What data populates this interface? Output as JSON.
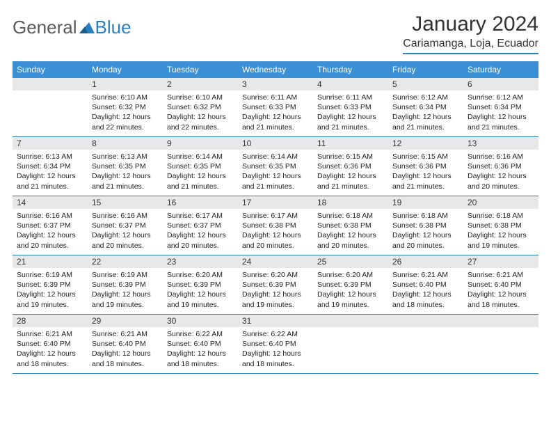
{
  "brand": {
    "name1": "General",
    "name2": "Blue"
  },
  "title": "January 2024",
  "location": "Cariamanga, Loja, Ecuador",
  "colors": {
    "header_bg": "#3b8fd4",
    "accent": "#2a7fbf",
    "date_bg": "#e8e8e8",
    "text": "#222222",
    "page_bg": "#ffffff"
  },
  "day_names": [
    "Sunday",
    "Monday",
    "Tuesday",
    "Wednesday",
    "Thursday",
    "Friday",
    "Saturday"
  ],
  "weeks": [
    [
      null,
      {
        "n": "1",
        "sr": "Sunrise: 6:10 AM",
        "ss": "Sunset: 6:32 PM",
        "d1": "Daylight: 12 hours",
        "d2": "and 22 minutes."
      },
      {
        "n": "2",
        "sr": "Sunrise: 6:10 AM",
        "ss": "Sunset: 6:32 PM",
        "d1": "Daylight: 12 hours",
        "d2": "and 22 minutes."
      },
      {
        "n": "3",
        "sr": "Sunrise: 6:11 AM",
        "ss": "Sunset: 6:33 PM",
        "d1": "Daylight: 12 hours",
        "d2": "and 21 minutes."
      },
      {
        "n": "4",
        "sr": "Sunrise: 6:11 AM",
        "ss": "Sunset: 6:33 PM",
        "d1": "Daylight: 12 hours",
        "d2": "and 21 minutes."
      },
      {
        "n": "5",
        "sr": "Sunrise: 6:12 AM",
        "ss": "Sunset: 6:34 PM",
        "d1": "Daylight: 12 hours",
        "d2": "and 21 minutes."
      },
      {
        "n": "6",
        "sr": "Sunrise: 6:12 AM",
        "ss": "Sunset: 6:34 PM",
        "d1": "Daylight: 12 hours",
        "d2": "and 21 minutes."
      }
    ],
    [
      {
        "n": "7",
        "sr": "Sunrise: 6:13 AM",
        "ss": "Sunset: 6:34 PM",
        "d1": "Daylight: 12 hours",
        "d2": "and 21 minutes."
      },
      {
        "n": "8",
        "sr": "Sunrise: 6:13 AM",
        "ss": "Sunset: 6:35 PM",
        "d1": "Daylight: 12 hours",
        "d2": "and 21 minutes."
      },
      {
        "n": "9",
        "sr": "Sunrise: 6:14 AM",
        "ss": "Sunset: 6:35 PM",
        "d1": "Daylight: 12 hours",
        "d2": "and 21 minutes."
      },
      {
        "n": "10",
        "sr": "Sunrise: 6:14 AM",
        "ss": "Sunset: 6:35 PM",
        "d1": "Daylight: 12 hours",
        "d2": "and 21 minutes."
      },
      {
        "n": "11",
        "sr": "Sunrise: 6:15 AM",
        "ss": "Sunset: 6:36 PM",
        "d1": "Daylight: 12 hours",
        "d2": "and 21 minutes."
      },
      {
        "n": "12",
        "sr": "Sunrise: 6:15 AM",
        "ss": "Sunset: 6:36 PM",
        "d1": "Daylight: 12 hours",
        "d2": "and 21 minutes."
      },
      {
        "n": "13",
        "sr": "Sunrise: 6:16 AM",
        "ss": "Sunset: 6:36 PM",
        "d1": "Daylight: 12 hours",
        "d2": "and 20 minutes."
      }
    ],
    [
      {
        "n": "14",
        "sr": "Sunrise: 6:16 AM",
        "ss": "Sunset: 6:37 PM",
        "d1": "Daylight: 12 hours",
        "d2": "and 20 minutes."
      },
      {
        "n": "15",
        "sr": "Sunrise: 6:16 AM",
        "ss": "Sunset: 6:37 PM",
        "d1": "Daylight: 12 hours",
        "d2": "and 20 minutes."
      },
      {
        "n": "16",
        "sr": "Sunrise: 6:17 AM",
        "ss": "Sunset: 6:37 PM",
        "d1": "Daylight: 12 hours",
        "d2": "and 20 minutes."
      },
      {
        "n": "17",
        "sr": "Sunrise: 6:17 AM",
        "ss": "Sunset: 6:38 PM",
        "d1": "Daylight: 12 hours",
        "d2": "and 20 minutes."
      },
      {
        "n": "18",
        "sr": "Sunrise: 6:18 AM",
        "ss": "Sunset: 6:38 PM",
        "d1": "Daylight: 12 hours",
        "d2": "and 20 minutes."
      },
      {
        "n": "19",
        "sr": "Sunrise: 6:18 AM",
        "ss": "Sunset: 6:38 PM",
        "d1": "Daylight: 12 hours",
        "d2": "and 20 minutes."
      },
      {
        "n": "20",
        "sr": "Sunrise: 6:18 AM",
        "ss": "Sunset: 6:38 PM",
        "d1": "Daylight: 12 hours",
        "d2": "and 19 minutes."
      }
    ],
    [
      {
        "n": "21",
        "sr": "Sunrise: 6:19 AM",
        "ss": "Sunset: 6:39 PM",
        "d1": "Daylight: 12 hours",
        "d2": "and 19 minutes."
      },
      {
        "n": "22",
        "sr": "Sunrise: 6:19 AM",
        "ss": "Sunset: 6:39 PM",
        "d1": "Daylight: 12 hours",
        "d2": "and 19 minutes."
      },
      {
        "n": "23",
        "sr": "Sunrise: 6:20 AM",
        "ss": "Sunset: 6:39 PM",
        "d1": "Daylight: 12 hours",
        "d2": "and 19 minutes."
      },
      {
        "n": "24",
        "sr": "Sunrise: 6:20 AM",
        "ss": "Sunset: 6:39 PM",
        "d1": "Daylight: 12 hours",
        "d2": "and 19 minutes."
      },
      {
        "n": "25",
        "sr": "Sunrise: 6:20 AM",
        "ss": "Sunset: 6:39 PM",
        "d1": "Daylight: 12 hours",
        "d2": "and 19 minutes."
      },
      {
        "n": "26",
        "sr": "Sunrise: 6:21 AM",
        "ss": "Sunset: 6:40 PM",
        "d1": "Daylight: 12 hours",
        "d2": "and 18 minutes."
      },
      {
        "n": "27",
        "sr": "Sunrise: 6:21 AM",
        "ss": "Sunset: 6:40 PM",
        "d1": "Daylight: 12 hours",
        "d2": "and 18 minutes."
      }
    ],
    [
      {
        "n": "28",
        "sr": "Sunrise: 6:21 AM",
        "ss": "Sunset: 6:40 PM",
        "d1": "Daylight: 12 hours",
        "d2": "and 18 minutes."
      },
      {
        "n": "29",
        "sr": "Sunrise: 6:21 AM",
        "ss": "Sunset: 6:40 PM",
        "d1": "Daylight: 12 hours",
        "d2": "and 18 minutes."
      },
      {
        "n": "30",
        "sr": "Sunrise: 6:22 AM",
        "ss": "Sunset: 6:40 PM",
        "d1": "Daylight: 12 hours",
        "d2": "and 18 minutes."
      },
      {
        "n": "31",
        "sr": "Sunrise: 6:22 AM",
        "ss": "Sunset: 6:40 PM",
        "d1": "Daylight: 12 hours",
        "d2": "and 18 minutes."
      },
      null,
      null,
      null
    ]
  ]
}
